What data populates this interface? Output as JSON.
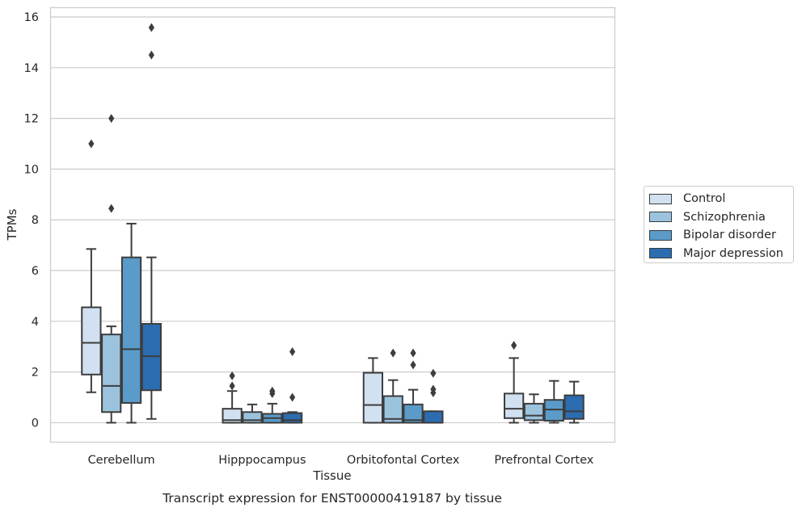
{
  "chart_data": {
    "type": "box",
    "title": "Transcript expression for ENST00000419187 by tissue",
    "xlabel": "Tissue",
    "ylabel": "TPMs",
    "ylim": [
      -0.75,
      16.35
    ],
    "yticks": [
      0,
      2,
      4,
      6,
      8,
      10,
      12,
      14,
      16
    ],
    "grid": true,
    "legend_position": "right",
    "categories": [
      "Cerebellum",
      "Hipppocampus",
      "Orbitofontal Cortex",
      "Prefrontal Cortex"
    ],
    "series": [
      {
        "name": "Control",
        "color": "#d1e1f1",
        "boxes": [
          {
            "whisker_low": 1.2,
            "q1": 1.9,
            "median": 3.15,
            "q3": 4.55,
            "whisker_high": 6.85,
            "outliers": [
              11.0
            ]
          },
          {
            "whisker_low": 0.0,
            "q1": 0.0,
            "median": 0.1,
            "q3": 0.55,
            "whisker_high": 1.25,
            "outliers": [
              1.45,
              1.85
            ]
          },
          {
            "whisker_low": 0.0,
            "q1": 0.0,
            "median": 0.7,
            "q3": 1.97,
            "whisker_high": 2.55,
            "outliers": []
          },
          {
            "whisker_low": 0.0,
            "q1": 0.18,
            "median": 0.55,
            "q3": 1.15,
            "whisker_high": 2.55,
            "outliers": [
              3.05
            ]
          }
        ]
      },
      {
        "name": "Schizophrenia",
        "color": "#9bc3de",
        "boxes": [
          {
            "whisker_low": 0.0,
            "q1": 0.42,
            "median": 1.45,
            "q3": 3.48,
            "whisker_high": 3.8,
            "outliers": [
              8.45,
              12.0
            ]
          },
          {
            "whisker_low": 0.0,
            "q1": 0.0,
            "median": 0.1,
            "q3": 0.42,
            "whisker_high": 0.72,
            "outliers": []
          },
          {
            "whisker_low": 0.0,
            "q1": 0.0,
            "median": 0.15,
            "q3": 1.05,
            "whisker_high": 1.68,
            "outliers": [
              2.75
            ]
          },
          {
            "whisker_low": 0.0,
            "q1": 0.1,
            "median": 0.28,
            "q3": 0.75,
            "whisker_high": 1.12,
            "outliers": []
          }
        ]
      },
      {
        "name": "Bipolar disorder",
        "color": "#5a9bc9",
        "boxes": [
          {
            "whisker_low": 0.0,
            "q1": 0.78,
            "median": 2.9,
            "q3": 6.52,
            "whisker_high": 7.85,
            "outliers": []
          },
          {
            "whisker_low": 0.0,
            "q1": 0.0,
            "median": 0.18,
            "q3": 0.35,
            "whisker_high": 0.75,
            "outliers": [
              1.15,
              1.25
            ]
          },
          {
            "whisker_low": 0.0,
            "q1": 0.0,
            "median": 0.1,
            "q3": 0.72,
            "whisker_high": 1.3,
            "outliers": [
              2.28,
              2.75
            ]
          },
          {
            "whisker_low": 0.0,
            "q1": 0.08,
            "median": 0.52,
            "q3": 0.9,
            "whisker_high": 1.65,
            "outliers": []
          }
        ]
      },
      {
        "name": "Major depression",
        "color": "#2c6cb1",
        "boxes": [
          {
            "whisker_low": 0.15,
            "q1": 1.28,
            "median": 2.62,
            "q3": 3.9,
            "whisker_high": 6.52,
            "outliers": [
              14.5,
              15.58
            ]
          },
          {
            "whisker_low": 0.0,
            "q1": 0.0,
            "median": 0.1,
            "q3": 0.38,
            "whisker_high": 0.42,
            "outliers": [
              1.0,
              2.8
            ]
          },
          {
            "whisker_low": 0.0,
            "q1": 0.0,
            "median": 0.0,
            "q3": 0.45,
            "whisker_high": 0.45,
            "outliers": [
              1.18,
              1.32,
              1.95
            ]
          },
          {
            "whisker_low": 0.0,
            "q1": 0.15,
            "median": 0.45,
            "q3": 1.08,
            "whisker_high": 1.62,
            "outliers": []
          }
        ]
      }
    ]
  }
}
